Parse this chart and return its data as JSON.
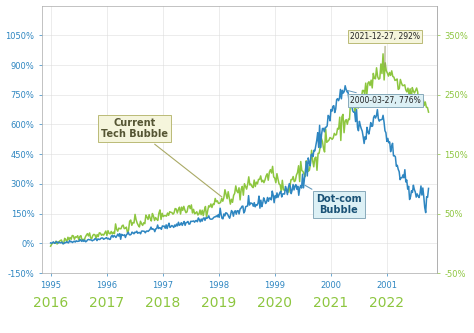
{
  "blue_color": "#2E86C1",
  "green_color": "#8DC63F",
  "bg_color": "#FFFFFF",
  "grid_color": "#DDDDDD",
  "left_ylim": [
    -150,
    1200
  ],
  "right_ylim": [
    -50,
    400
  ],
  "left_yticks": [
    -150,
    0,
    150,
    300,
    450,
    600,
    750,
    900,
    1050
  ],
  "right_yticks": [
    -50,
    50,
    150,
    250,
    350
  ],
  "right_ytick_labels": [
    "-50%",
    "50%",
    "150%",
    "250%",
    "350%"
  ],
  "left_ytick_labels": [
    "-150%",
    "0%",
    "150%",
    "300%",
    "450%",
    "600%",
    "750%",
    "900%",
    "1050%"
  ],
  "blue_xticks": [
    1995,
    1996,
    1997,
    1998,
    1999,
    2000,
    2001
  ],
  "green_xtick_labels": [
    "2016",
    "2017",
    "2018",
    "2019",
    "2020",
    "2021",
    "2022"
  ],
  "xlim": [
    1994.85,
    2001.9
  ],
  "annotation_green_text": "2021-12-27, 292%",
  "annotation_blue_text": "2000-03-27, 776%",
  "label_current_text": "Current\nTech Bubble",
  "label_dotcom_text": "Dot-com\nBubble"
}
